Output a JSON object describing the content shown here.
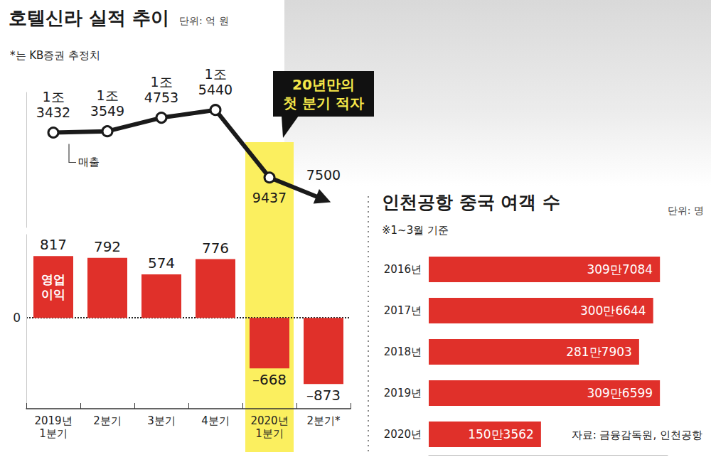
{
  "chart_data": [
    {
      "type": "bar",
      "title": "호텔신라 실적 추이",
      "subtitle": "단위: 억 원",
      "annotations": [
        "*는 KB증권 추정치",
        "20년만의 첫 분기 적자"
      ],
      "categories": [
        "2019년 1분기",
        "2분기",
        "3분기",
        "4분기",
        "2020년 1분기",
        "2분기*"
      ],
      "series": [
        {
          "name": "매출",
          "type": "line",
          "color": "#1a1a1a",
          "marker": "circle",
          "axis": "y2",
          "values": [
            13432,
            13549,
            14753,
            15440,
            9437,
            7500
          ],
          "value_labels": [
            "1조 3432",
            "1조 3549",
            "1조 4753",
            "1조 5440",
            "9437",
            "7500"
          ]
        },
        {
          "name": "영업이익",
          "type": "bar",
          "color": "#e0302a",
          "values": [
            817,
            792,
            574,
            776,
            -668,
            -873
          ],
          "value_labels": [
            "817",
            "792",
            "574",
            "776",
            "–668",
            "–873"
          ]
        }
      ],
      "ylim": [
        -1200,
        1100
      ],
      "yticks": [
        0
      ],
      "y2lim": [
        5000,
        17000
      ],
      "y2ticks": [],
      "grid": true,
      "data_labels": true
    },
    {
      "type": "bar",
      "orientation": "horizontal",
      "title": "인천공항 중국 여객 수",
      "subtitle": "단위: 명",
      "annotations": [
        "※1~3월 기준",
        "자료: 금융감독원, 인천공항"
      ],
      "categories": [
        "2016년",
        "2017년",
        "2018년",
        "2019년",
        "2020년"
      ],
      "values": [
        3097084,
        3006644,
        2817903,
        3096599,
        1503562
      ],
      "value_labels": [
        "309만7084",
        "300만6644",
        "281만7903",
        "309만6599",
        "150만3562"
      ],
      "color": "#e0302a",
      "xlim": [
        0,
        3200000
      ],
      "xticks": [],
      "grid": false,
      "data_labels": true,
      "tick_labels": "y"
    }
  ]
}
